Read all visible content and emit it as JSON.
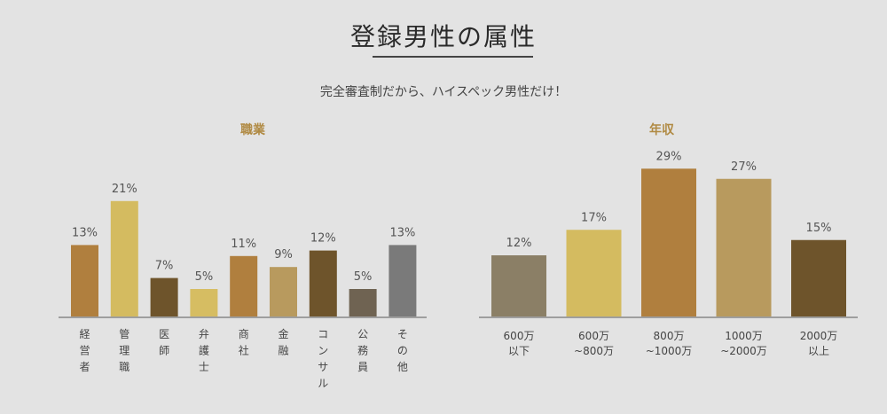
{
  "page": {
    "title": "登録男性の属性",
    "subtitle": "完全審査制だから、ハイスペック男性だけ！"
  },
  "chart_data": [
    {
      "type": "bar",
      "title": "職業",
      "categories": [
        "経営者",
        "管理職",
        "医師",
        "弁護士",
        "商社",
        "金融",
        "コンサル",
        "公務員",
        "その他"
      ],
      "values": [
        13,
        21,
        7,
        5,
        11,
        9,
        12,
        5,
        13
      ],
      "value_labels": [
        "13%",
        "21%",
        "7%",
        "5%",
        "11%",
        "9%",
        "12%",
        "5%",
        "13%"
      ],
      "colors": [
        "#b07f3e",
        "#d4bb60",
        "#6e542b",
        "#d6bd62",
        "#b07f3e",
        "#b89a5e",
        "#6e542b",
        "#6f6352",
        "#7a7a7a"
      ],
      "category_orientation": "vertical"
    },
    {
      "type": "bar",
      "title": "年収",
      "categories": [
        [
          "600万",
          "以下"
        ],
        [
          "600万",
          "~800万"
        ],
        [
          "800万",
          "~1000万"
        ],
        [
          "1000万",
          "~2000万"
        ],
        [
          "2000万",
          "以上"
        ]
      ],
      "values": [
        12,
        17,
        29,
        27,
        15
      ],
      "value_labels": [
        "12%",
        "17%",
        "29%",
        "27%",
        "15%"
      ],
      "colors": [
        "#8b7f66",
        "#d4bb60",
        "#b07f3e",
        "#b89a5e",
        "#6e542b"
      ],
      "category_orientation": "horizontal"
    }
  ]
}
